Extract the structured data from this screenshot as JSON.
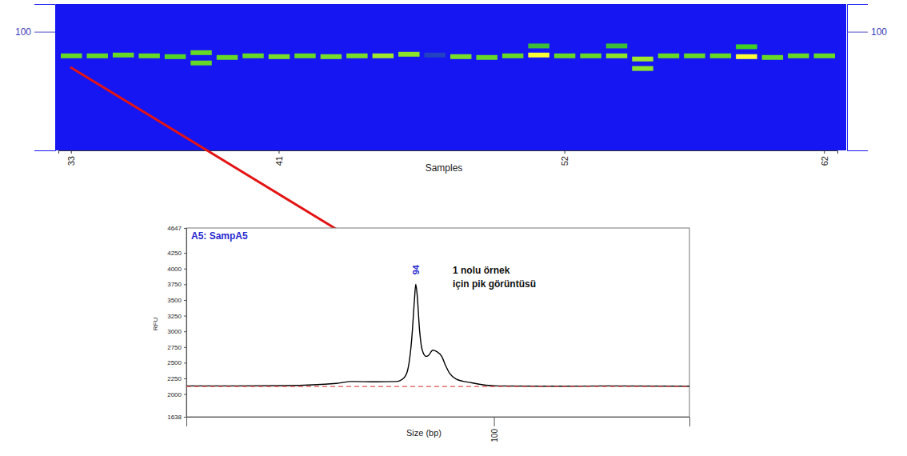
{
  "chart_data": [
    {
      "type": "gel",
      "xlabel": "Samples",
      "categories": [
        "33",
        null,
        null,
        null,
        null,
        null,
        null,
        null,
        "41",
        null,
        null,
        null,
        null,
        null,
        null,
        null,
        null,
        null,
        null,
        "52",
        null,
        null,
        null,
        null,
        null,
        null,
        null,
        null,
        null,
        "62"
      ],
      "ylim": [
        70,
        107
      ],
      "yticks": [
        100
      ],
      "bands": [
        [
          {
            "size": 93.9,
            "intensity": 0.6
          }
        ],
        [
          {
            "size": 93.9,
            "intensity": 0.6
          }
        ],
        [
          {
            "size": 94.1,
            "intensity": 0.6
          }
        ],
        [
          {
            "size": 93.9,
            "intensity": 0.6
          }
        ],
        [
          {
            "size": 93.7,
            "intensity": 0.55
          }
        ],
        [
          {
            "size": 94.7,
            "intensity": 0.6
          },
          {
            "size": 92.1,
            "intensity": 0.6
          }
        ],
        [
          {
            "size": 93.5,
            "intensity": 0.6
          }
        ],
        [
          {
            "size": 93.9,
            "intensity": 0.6
          }
        ],
        [
          {
            "size": 93.7,
            "intensity": 0.65
          }
        ],
        [
          {
            "size": 93.9,
            "intensity": 0.6
          }
        ],
        [
          {
            "size": 93.7,
            "intensity": 0.65
          }
        ],
        [
          {
            "size": 93.9,
            "intensity": 0.65
          }
        ],
        [
          {
            "size": 93.9,
            "intensity": 0.75
          }
        ],
        [
          {
            "size": 94.3,
            "intensity": 0.7
          }
        ],
        [
          {
            "size": 94.1,
            "intensity": 0.12
          }
        ],
        [
          {
            "size": 93.7,
            "intensity": 0.65
          }
        ],
        [
          {
            "size": 93.5,
            "intensity": 0.6
          }
        ],
        [
          {
            "size": 93.9,
            "intensity": 0.6
          }
        ],
        [
          {
            "size": 96.4,
            "intensity": 0.45
          },
          {
            "size": 94.1,
            "intensity": 1.0
          }
        ],
        [
          {
            "size": 93.9,
            "intensity": 0.6
          }
        ],
        [
          {
            "size": 93.9,
            "intensity": 0.6
          }
        ],
        [
          {
            "size": 96.4,
            "intensity": 0.45
          },
          {
            "size": 93.9,
            "intensity": 0.7
          }
        ],
        [
          {
            "size": 93.1,
            "intensity": 0.75
          },
          {
            "size": 90.7,
            "intensity": 0.7
          }
        ],
        [
          {
            "size": 93.9,
            "intensity": 0.6
          }
        ],
        [
          {
            "size": 93.9,
            "intensity": 0.6
          }
        ],
        [
          {
            "size": 93.9,
            "intensity": 0.6
          }
        ],
        [
          {
            "size": 96.2,
            "intensity": 0.5
          },
          {
            "size": 93.7,
            "intensity": 1.0
          }
        ],
        [
          {
            "size": 93.5,
            "intensity": 0.6
          }
        ],
        [
          {
            "size": 93.9,
            "intensity": 0.6
          }
        ],
        [
          {
            "size": 93.9,
            "intensity": 0.6
          }
        ]
      ]
    },
    {
      "type": "line",
      "title": "A5: SampA5",
      "xlabel": "Size (bp)",
      "ylabel": "RFU",
      "xlim": [
        76.4,
        115
      ],
      "ylim": [
        1638,
        4647
      ],
      "xticks": [
        100
      ],
      "yticks": [
        1638,
        2000,
        2250,
        2500,
        2750,
        3000,
        3250,
        3500,
        3750,
        4000,
        4250,
        4647
      ],
      "series": [
        {
          "color": "#000000",
          "line_style": "solid",
          "x": [
            76.4,
            80,
            84,
            87.9,
            89.1,
            91,
            92.5,
            93.1,
            93.4,
            93.7,
            93.9,
            94,
            94.1,
            94.3,
            94.5,
            94.8,
            95,
            95.3,
            95.6,
            96,
            96.3,
            96.6,
            97.1,
            98.3,
            100.2,
            105.1,
            108.8,
            115
          ],
          "values": [
            2130,
            2130,
            2135,
            2170,
            2200,
            2195,
            2200,
            2260,
            2400,
            2900,
            3500,
            3750,
            3600,
            3000,
            2700,
            2600,
            2620,
            2700,
            2680,
            2600,
            2450,
            2330,
            2240,
            2180,
            2130,
            2125,
            2130,
            2125
          ]
        },
        {
          "color": "#e05050",
          "line_style": "dashed",
          "x": [
            76.4,
            115
          ],
          "values": [
            2120,
            2120
          ]
        }
      ],
      "annotations": [
        {
          "label": "94",
          "x": 94,
          "y": 3750
        }
      ],
      "note": [
        "1 nolu örnek",
        "için pik görüntüsü"
      ]
    }
  ]
}
